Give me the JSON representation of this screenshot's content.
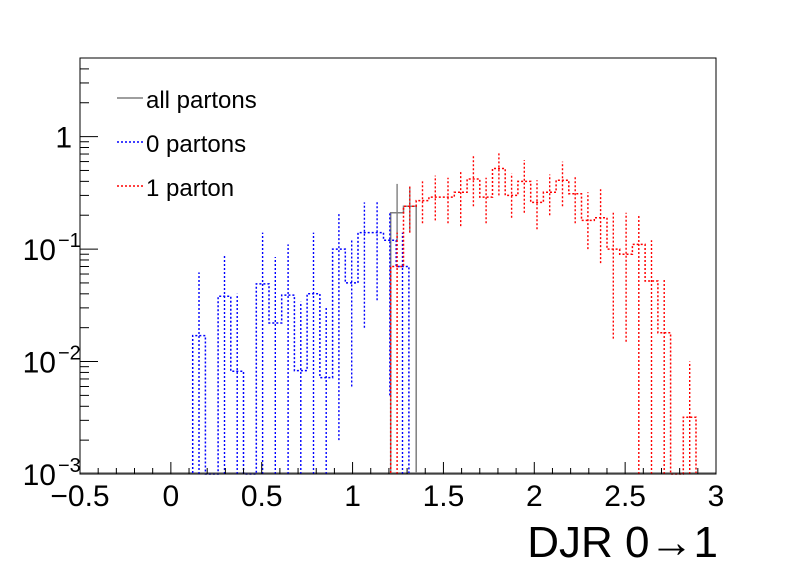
{
  "chart_data": {
    "type": "histogram",
    "title": "",
    "xlabel": "DJR 0→1",
    "ylabel": "",
    "xlim": [
      -0.5,
      3.0
    ],
    "ylim": [
      0.001,
      5.0
    ],
    "yscale": "log",
    "x_ticks": [
      -0.5,
      0,
      0.5,
      1,
      1.5,
      2,
      2.5,
      3
    ],
    "x_tick_labels": [
      "−0.5",
      "0",
      "0.5",
      "1",
      "1.5",
      "2",
      "2.5",
      "3"
    ],
    "y_ticks": [
      {
        "value": 0.001,
        "base": "10",
        "exp": "−3"
      },
      {
        "value": 0.01,
        "base": "10",
        "exp": "−2"
      },
      {
        "value": 0.1,
        "base": "10",
        "exp": "−1"
      },
      {
        "value": 1,
        "base": "1",
        "exp": ""
      }
    ],
    "legend_position": "top-left",
    "bin_width": 0.07,
    "bin_centers": [
      1.375,
      1.445,
      1.515,
      1.585,
      1.655,
      1.725,
      1.795,
      1.865,
      1.935,
      2.005,
      2.075,
      2.145,
      2.215,
      2.285,
      2.355,
      2.425
    ],
    "series": [
      {
        "name": "all partons",
        "color": "#7f7f7f",
        "style": "solid",
        "bins": [
          {
            "lo": 1.21,
            "hi": 1.28,
            "y": 0.21,
            "err": [
              0.12,
              0.38
            ]
          },
          {
            "lo": 1.28,
            "hi": 1.35,
            "y": 0.24,
            "err": [
              0.14,
              0.36
            ]
          }
        ]
      },
      {
        "name": "0 partons",
        "color": "#0000ff",
        "style": "dotted",
        "bins": [
          {
            "lo": 0.12,
            "hi": 0.19,
            "y": 0.017,
            "err": [
              0.001,
              0.062
            ]
          },
          {
            "lo": 0.19,
            "hi": 0.26,
            "y": 0.001,
            "err": [
              0.001,
              0.001
            ]
          },
          {
            "lo": 0.26,
            "hi": 0.33,
            "y": 0.038,
            "err": [
              0.001,
              0.09
            ]
          },
          {
            "lo": 0.33,
            "hi": 0.4,
            "y": 0.0082,
            "err": [
              0.001,
              0.04
            ]
          },
          {
            "lo": 0.4,
            "hi": 0.47,
            "y": 0.001,
            "err": [
              0.001,
              0.001
            ]
          },
          {
            "lo": 0.47,
            "hi": 0.54,
            "y": 0.049,
            "err": [
              0.001,
              0.14
            ]
          },
          {
            "lo": 0.54,
            "hi": 0.61,
            "y": 0.022,
            "err": [
              0.001,
              0.085
            ]
          },
          {
            "lo": 0.61,
            "hi": 0.68,
            "y": 0.039,
            "err": [
              0.001,
              0.11
            ]
          },
          {
            "lo": 0.68,
            "hi": 0.75,
            "y": 0.0083,
            "err": [
              0.001,
              0.034
            ]
          },
          {
            "lo": 0.75,
            "hi": 0.82,
            "y": 0.04,
            "err": [
              0.001,
              0.14
            ]
          },
          {
            "lo": 0.82,
            "hi": 0.89,
            "y": 0.0072,
            "err": [
              0.001,
              0.03
            ]
          },
          {
            "lo": 0.89,
            "hi": 0.96,
            "y": 0.1,
            "err": [
              0.002,
              0.21
            ]
          },
          {
            "lo": 0.96,
            "hi": 1.03,
            "y": 0.05,
            "err": [
              0.006,
              0.12
            ]
          },
          {
            "lo": 1.03,
            "hi": 1.1,
            "y": 0.14,
            "err": [
              0.02,
              0.26
            ]
          },
          {
            "lo": 1.1,
            "hi": 1.17,
            "y": 0.14,
            "err": [
              0.035,
              0.27
            ]
          },
          {
            "lo": 1.17,
            "hi": 1.24,
            "y": 0.12,
            "err": [
              0.005,
              0.21
            ]
          },
          {
            "lo": 1.24,
            "hi": 1.31,
            "y": 0.07,
            "err": [
              0.001,
              0.14
            ]
          }
        ]
      },
      {
        "name": "1 parton",
        "color": "#ff0000",
        "style": "dotted",
        "bins": [
          {
            "lo": 1.21,
            "hi": 1.28,
            "y": 0.07,
            "err": [
              0.001,
              0.14
            ]
          },
          {
            "lo": 1.28,
            "hi": 1.35,
            "y": 0.24,
            "err": [
              0.14,
              0.36
            ]
          },
          {
            "lo": 1.35,
            "hi": 1.42,
            "y": 0.27,
            "err": [
              0.17,
              0.4
            ]
          },
          {
            "lo": 1.42,
            "hi": 1.49,
            "y": 0.29,
            "err": [
              0.18,
              0.45
            ]
          },
          {
            "lo": 1.49,
            "hi": 1.56,
            "y": 0.29,
            "err": [
              0.17,
              0.43
            ]
          },
          {
            "lo": 1.56,
            "hi": 1.63,
            "y": 0.32,
            "err": [
              0.16,
              0.5
            ]
          },
          {
            "lo": 1.63,
            "hi": 1.7,
            "y": 0.42,
            "err": [
              0.24,
              0.68
            ]
          },
          {
            "lo": 1.7,
            "hi": 1.77,
            "y": 0.29,
            "err": [
              0.17,
              0.43
            ]
          },
          {
            "lo": 1.77,
            "hi": 1.84,
            "y": 0.52,
            "err": [
              0.3,
              0.72
            ]
          },
          {
            "lo": 1.84,
            "hi": 1.91,
            "y": 0.3,
            "err": [
              0.19,
              0.47
            ]
          },
          {
            "lo": 1.91,
            "hi": 1.98,
            "y": 0.4,
            "err": [
              0.21,
              0.62
            ]
          },
          {
            "lo": 1.98,
            "hi": 2.05,
            "y": 0.26,
            "err": [
              0.15,
              0.41
            ]
          },
          {
            "lo": 2.05,
            "hi": 2.12,
            "y": 0.32,
            "err": [
              0.2,
              0.46
            ]
          },
          {
            "lo": 2.12,
            "hi": 2.19,
            "y": 0.41,
            "err": [
              0.24,
              0.6
            ]
          },
          {
            "lo": 2.19,
            "hi": 2.26,
            "y": 0.31,
            "err": [
              0.17,
              0.45
            ]
          },
          {
            "lo": 2.26,
            "hi": 2.33,
            "y": 0.18,
            "err": [
              0.1,
              0.32
            ]
          },
          {
            "lo": 2.33,
            "hi": 2.4,
            "y": 0.19,
            "err": [
              0.075,
              0.34
            ]
          },
          {
            "lo": 2.4,
            "hi": 2.47,
            "y": 0.1,
            "err": [
              0.016,
              0.21
            ]
          },
          {
            "lo": 2.47,
            "hi": 2.54,
            "y": 0.09,
            "err": [
              0.015,
              0.21
            ]
          },
          {
            "lo": 2.54,
            "hi": 2.61,
            "y": 0.11,
            "err": [
              0.001,
              0.2
            ]
          },
          {
            "lo": 2.61,
            "hi": 2.68,
            "y": 0.052,
            "err": [
              0.001,
              0.12
            ]
          },
          {
            "lo": 2.68,
            "hi": 2.75,
            "y": 0.018,
            "err": [
              0.001,
              0.055
            ]
          },
          {
            "lo": 2.75,
            "hi": 2.82,
            "y": 0.001,
            "err": [
              0.001,
              0.001
            ]
          },
          {
            "lo": 2.82,
            "hi": 2.89,
            "y": 0.0032,
            "err": [
              0.001,
              0.01
            ]
          }
        ]
      }
    ]
  }
}
